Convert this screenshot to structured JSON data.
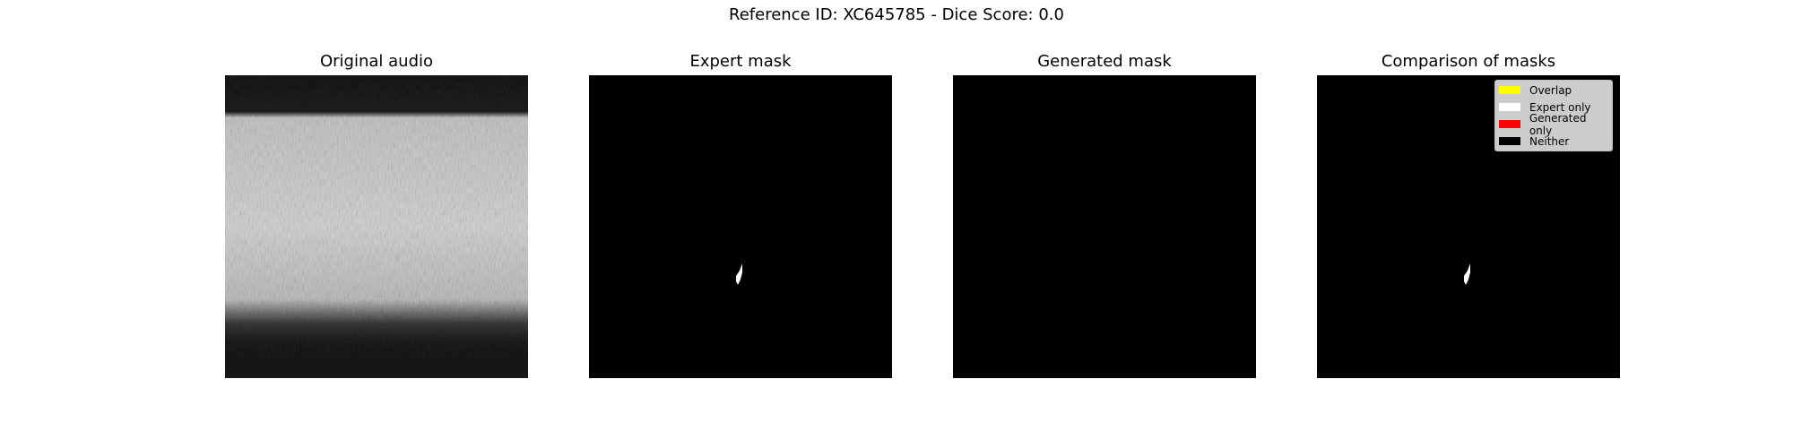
{
  "figure": {
    "suptitle": "Reference ID: XC645785 - Dice Score: 0.0"
  },
  "panels": [
    {
      "title": "Original audio"
    },
    {
      "title": "Expert mask"
    },
    {
      "title": "Generated mask"
    },
    {
      "title": "Comparison of masks"
    }
  ],
  "legend": {
    "items": [
      {
        "label": "Overlap",
        "color": "#ffff00"
      },
      {
        "label": "Expert only",
        "color": "#ffffff"
      },
      {
        "label": "Generated only",
        "color": "#ff0000"
      },
      {
        "label": "Neither",
        "color": "#000000"
      }
    ]
  },
  "colors": {
    "mask_background": "#000000",
    "mask_foreground": "#ffffff",
    "spectrogram_dark": "#141414",
    "spectrogram_light": "#d8d8d8"
  }
}
